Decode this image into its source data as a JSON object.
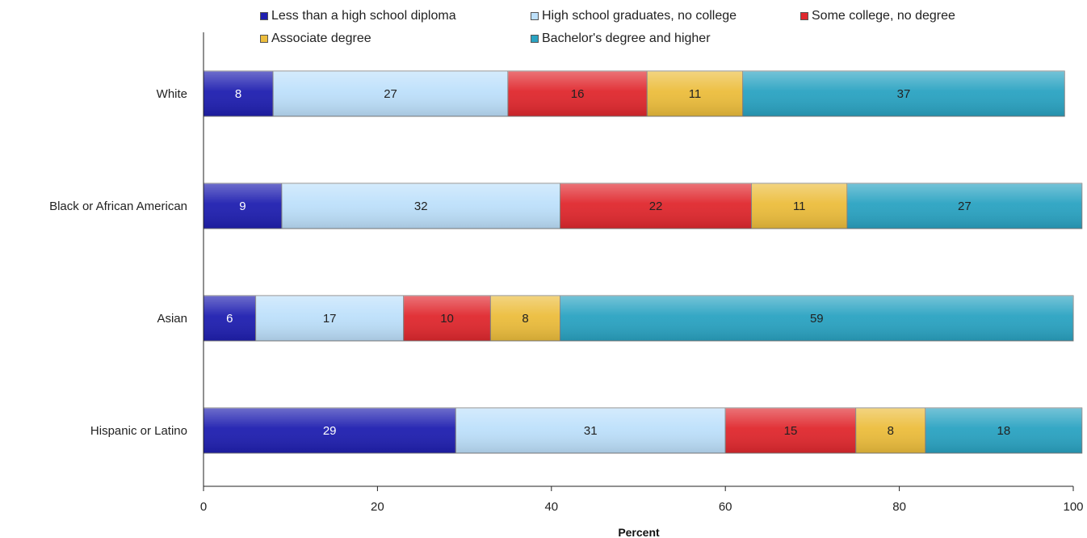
{
  "chart_data": {
    "type": "bar",
    "orientation": "horizontal",
    "stacked": true,
    "title": "",
    "xlabel": "Percent",
    "ylabel": "",
    "xlim": [
      0,
      100
    ],
    "xticks": [
      0,
      20,
      40,
      60,
      80,
      100
    ],
    "grid": false,
    "legend_position": "top",
    "categories": [
      "White",
      "Black or African American",
      "Asian",
      "Hispanic or Latino"
    ],
    "series": [
      {
        "name": "Less than a high school diploma",
        "color": "#1f1fb0",
        "label_color": "#ffffff",
        "values": [
          8,
          9,
          6,
          29
        ]
      },
      {
        "name": "High school graduates, no college",
        "color": "#bde0fb",
        "label_color": "#222222",
        "values": [
          27,
          32,
          17,
          31
        ]
      },
      {
        "name": "Some college, no degree",
        "color": "#e0282e",
        "label_color": "#222222",
        "values": [
          16,
          22,
          10,
          15
        ]
      },
      {
        "name": "Associate degree",
        "color": "#ecbd3c",
        "label_color": "#222222",
        "values": [
          11,
          11,
          8,
          8
        ]
      },
      {
        "name": "Bachelor's degree and higher",
        "color": "#2aa3c2",
        "label_color": "#222222",
        "values": [
          37,
          27,
          59,
          18
        ]
      }
    ]
  }
}
